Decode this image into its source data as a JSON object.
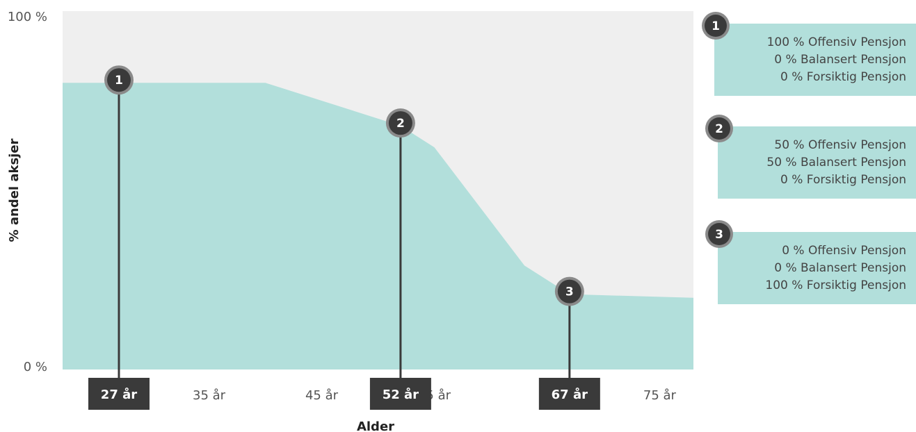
{
  "chart_data": {
    "type": "area",
    "title": "",
    "xlabel": "Alder",
    "ylabel": "% andel aksjer",
    "xlim": [
      22,
      78
    ],
    "ylim": [
      0,
      100
    ],
    "y_tick_labels": [
      "0 %",
      "100 %"
    ],
    "x": [
      22,
      40,
      45,
      52,
      55,
      63,
      67,
      78
    ],
    "values": [
      80,
      80,
      75,
      68,
      62,
      29,
      21,
      20
    ],
    "x_ticks": [
      {
        "value": 35,
        "label": "35 år"
      },
      {
        "value": 45,
        "label": "45 år"
      },
      {
        "value": 55,
        "label": "55 år"
      },
      {
        "value": 75,
        "label": "75 år"
      }
    ],
    "markers": [
      {
        "id": "1",
        "age": 27,
        "label": "27 år",
        "stocks": 80
      },
      {
        "id": "2",
        "age": 52,
        "label": "52 år",
        "stocks": 68
      },
      {
        "id": "3",
        "age": 67,
        "label": "67 år",
        "stocks": 21
      }
    ],
    "legend": [
      {
        "id": "1",
        "lines": [
          "100 % Offensiv Pensjon",
          "0 % Balansert Pensjon",
          "0 % Forsiktig Pensjon"
        ]
      },
      {
        "id": "2",
        "lines": [
          "50 % Offensiv Pensjon",
          "50 % Balansert Pensjon",
          "0 % Forsiktig Pensjon"
        ]
      },
      {
        "id": "3",
        "lines": [
          "0 % Offensiv Pensjon",
          "0 % Balansert Pensjon",
          "100 % Forsiktig Pensjon"
        ]
      }
    ],
    "grid": false,
    "colors": {
      "background": "#efefef",
      "area": "#b2dfdb",
      "marker": "#3a3a3a",
      "marker_ring": "#8a8a8a",
      "legend_box": "#b2dfdb"
    }
  }
}
